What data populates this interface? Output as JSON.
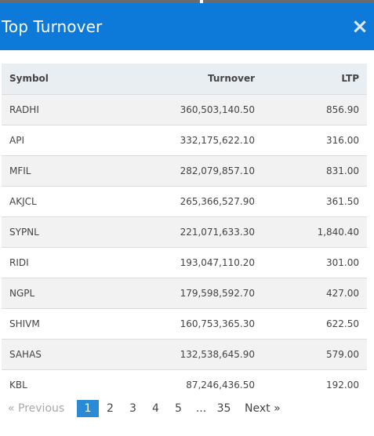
{
  "modal": {
    "title": "Top Turnover",
    "close_label": "×"
  },
  "table": {
    "headers": {
      "symbol": "Symbol",
      "turnover": "Turnover",
      "ltp": "LTP"
    },
    "rows": [
      {
        "symbol": "RADHI",
        "turnover": "360,503,140.50",
        "ltp": "856.90"
      },
      {
        "symbol": "API",
        "turnover": "332,175,622.10",
        "ltp": "316.00"
      },
      {
        "symbol": "MFIL",
        "turnover": "282,079,857.10",
        "ltp": "831.00"
      },
      {
        "symbol": "AKJCL",
        "turnover": "265,366,527.90",
        "ltp": "361.50"
      },
      {
        "symbol": "SYPNL",
        "turnover": "221,071,633.30",
        "ltp": "1,840.40"
      },
      {
        "symbol": "RIDI",
        "turnover": "193,047,110.20",
        "ltp": "301.00"
      },
      {
        "symbol": "NGPL",
        "turnover": "179,598,592.70",
        "ltp": "427.00"
      },
      {
        "symbol": "SHIVM",
        "turnover": "160,753,365.30",
        "ltp": "622.50"
      },
      {
        "symbol": "SAHAS",
        "turnover": "132,538,645.90",
        "ltp": "579.00"
      },
      {
        "symbol": "KBL",
        "turnover": "87,246,436.50",
        "ltp": "192.00"
      }
    ]
  },
  "pagination": {
    "previous": "«   Previous",
    "pages": [
      "1",
      "2",
      "3",
      "4",
      "5"
    ],
    "active_page": "1",
    "ellipsis": "...",
    "last_page": "35",
    "next": "Next   »"
  },
  "colors": {
    "header_bg": "#0d7ad9",
    "active_page_bg": "#2a8ad5"
  }
}
